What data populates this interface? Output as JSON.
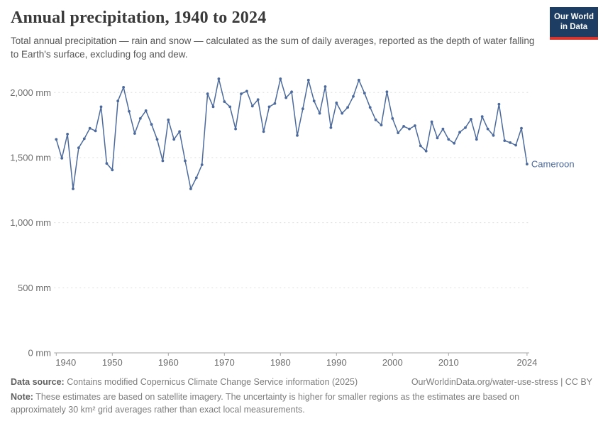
{
  "header": {
    "title": "Annual precipitation, 1940 to 2024",
    "subtitle": "Total annual precipitation — rain and snow — calculated as the sum of daily averages, reported as the depth of water falling to Earth's surface, excluding fog and dew.",
    "logo": {
      "line1": "Our World",
      "line2": "in Data"
    }
  },
  "chart_data": {
    "type": "line",
    "title": "Annual precipitation, 1940 to 2024",
    "unit": "mm",
    "xlabel": "",
    "ylabel": "",
    "ylim": [
      0,
      2200
    ],
    "grid": "horizontal-dashed",
    "legend": "end-of-line-label",
    "x_ticks": [
      1940,
      1950,
      1960,
      1970,
      1980,
      1990,
      2000,
      2010,
      2024
    ],
    "y_ticks": [
      {
        "value": 0,
        "label": "0 mm"
      },
      {
        "value": 500,
        "label": "500 mm"
      },
      {
        "value": 1000,
        "label": "1,000 mm"
      },
      {
        "value": 1500,
        "label": "1,500 mm"
      },
      {
        "value": 2000,
        "label": "2,000 mm"
      }
    ],
    "x": [
      1940,
      1941,
      1942,
      1943,
      1944,
      1945,
      1946,
      1947,
      1948,
      1949,
      1950,
      1951,
      1952,
      1953,
      1954,
      1955,
      1956,
      1957,
      1958,
      1959,
      1960,
      1961,
      1962,
      1963,
      1964,
      1965,
      1966,
      1967,
      1968,
      1969,
      1970,
      1971,
      1972,
      1973,
      1974,
      1975,
      1976,
      1977,
      1978,
      1979,
      1980,
      1981,
      1982,
      1983,
      1984,
      1985,
      1986,
      1987,
      1988,
      1989,
      1990,
      1991,
      1992,
      1993,
      1994,
      1995,
      1996,
      1997,
      1998,
      1999,
      2000,
      2001,
      2002,
      2003,
      2004,
      2005,
      2006,
      2007,
      2008,
      2009,
      2010,
      2011,
      2012,
      2013,
      2014,
      2015,
      2016,
      2017,
      2018,
      2019,
      2020,
      2021,
      2022,
      2023,
      2024
    ],
    "series": [
      {
        "name": "Cameroon",
        "color": "#4C6A9C",
        "values": [
          1640,
          1495,
          1680,
          1260,
          1575,
          1645,
          1725,
          1705,
          1890,
          1455,
          1405,
          1935,
          2040,
          1855,
          1685,
          1800,
          1860,
          1755,
          1640,
          1475,
          1790,
          1640,
          1700,
          1475,
          1260,
          1345,
          1445,
          1990,
          1890,
          2105,
          1930,
          1890,
          1720,
          1990,
          2010,
          1895,
          1945,
          1700,
          1890,
          1915,
          2105,
          1960,
          2005,
          1670,
          1875,
          2095,
          1935,
          1840,
          2045,
          1730,
          1920,
          1840,
          1885,
          1970,
          2095,
          1995,
          1885,
          1790,
          1750,
          2005,
          1800,
          1690,
          1740,
          1720,
          1745,
          1590,
          1550,
          1775,
          1650,
          1720,
          1640,
          1610,
          1695,
          1730,
          1795,
          1640,
          1815,
          1720,
          1670,
          1910,
          1630,
          1615,
          1595,
          1725,
          1450
        ]
      }
    ]
  },
  "footer": {
    "datasource_label": "Data source:",
    "datasource_text": " Contains modified Copernicus Climate Change Service information (2025)",
    "link_text": "OurWorldinData.org/water-use-stress | CC BY",
    "note_label": "Note:",
    "note_text": " These estimates are based on satellite imagery. The uncertainty is higher for smaller regions as the estimates are based on approximately 30 km² grid averages rather than exact local measurements."
  },
  "colors": {
    "series": "#4C6A9C",
    "grid": "#dddddd",
    "axis": "#a5a5a5",
    "tick_label": "#6e6e6e",
    "logo_bg": "#1d3d63",
    "logo_accent": "#d7342e"
  }
}
